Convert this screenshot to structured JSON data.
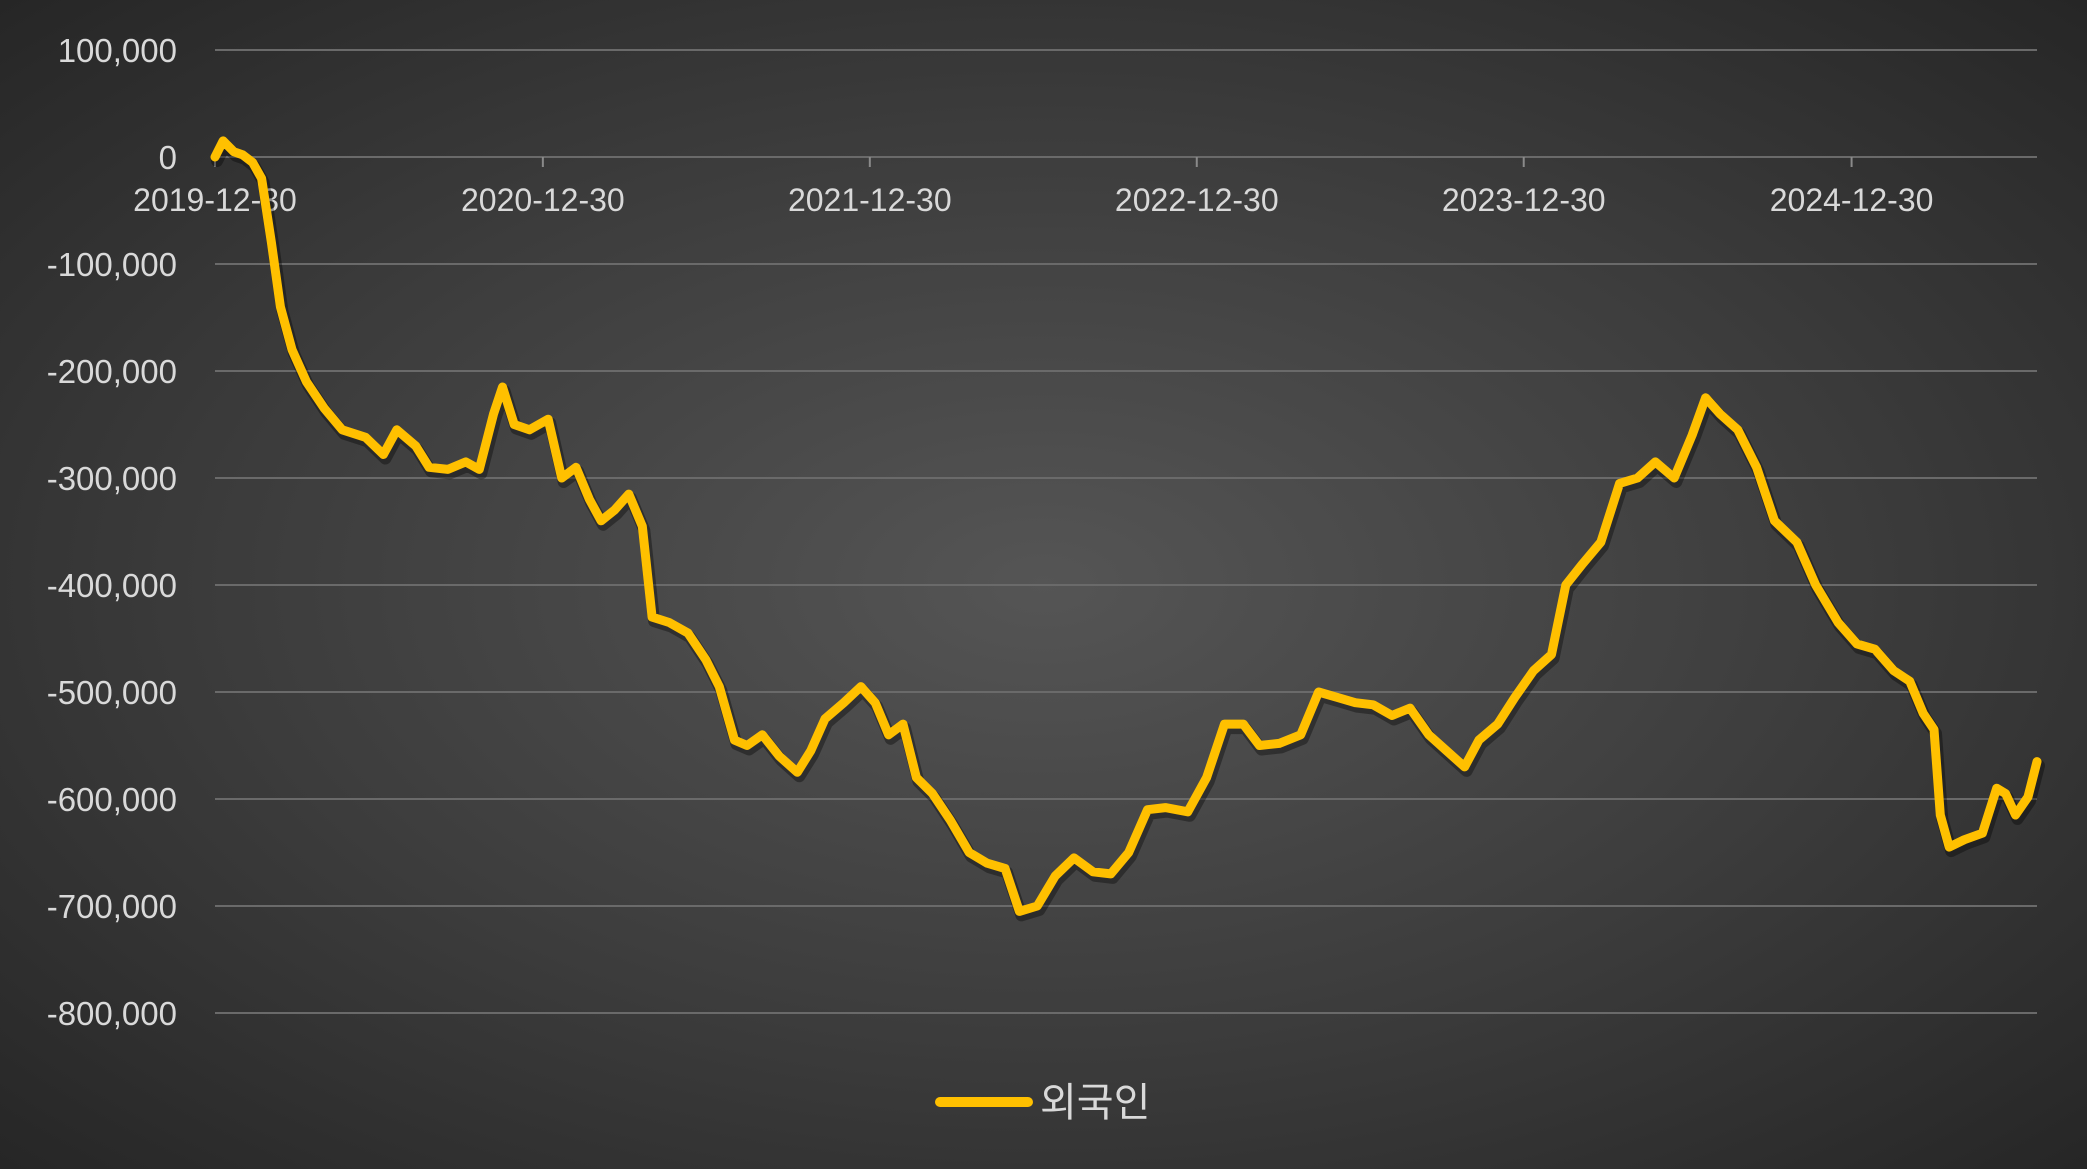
{
  "chart_data": {
    "type": "line",
    "title": "",
    "xlabel": "",
    "ylabel": "",
    "x_start": "2019-12-30",
    "x_end": "2025-07-25",
    "x_ticks": [
      "2019-12-30",
      "2020-12-30",
      "2021-12-30",
      "2022-12-30",
      "2023-12-30",
      "2024-12-30"
    ],
    "y_ticks": [
      "100,000",
      "0",
      "-100,000",
      "-200,000",
      "-300,000",
      "-400,000",
      "-500,000",
      "-600,000",
      "-700,000",
      "-800,000"
    ],
    "ylim": [
      -800000,
      100000
    ],
    "grid": true,
    "legend_position": "bottom",
    "series": [
      {
        "name": "외국인",
        "color": "#FFC000",
        "points": [
          [
            "2019-12-30",
            0
          ],
          [
            "2020-01-08",
            15000
          ],
          [
            "2020-01-20",
            5000
          ],
          [
            "2020-01-30",
            2000
          ],
          [
            "2020-02-10",
            -5000
          ],
          [
            "2020-02-20",
            -20000
          ],
          [
            "2020-03-02",
            -80000
          ],
          [
            "2020-03-12",
            -140000
          ],
          [
            "2020-03-25",
            -180000
          ],
          [
            "2020-04-10",
            -210000
          ],
          [
            "2020-04-30",
            -235000
          ],
          [
            "2020-05-20",
            -255000
          ],
          [
            "2020-06-15",
            -262000
          ],
          [
            "2020-07-05",
            -278000
          ],
          [
            "2020-07-20",
            -255000
          ],
          [
            "2020-08-10",
            -270000
          ],
          [
            "2020-08-25",
            -290000
          ],
          [
            "2020-09-15",
            -292000
          ],
          [
            "2020-10-05",
            -285000
          ],
          [
            "2020-10-20",
            -292000
          ],
          [
            "2020-11-05",
            -240000
          ],
          [
            "2020-11-15",
            -215000
          ],
          [
            "2020-11-28",
            -250000
          ],
          [
            "2020-12-15",
            -255000
          ],
          [
            "2021-01-05",
            -245000
          ],
          [
            "2021-01-20",
            -300000
          ],
          [
            "2021-02-05",
            -290000
          ],
          [
            "2021-02-20",
            -320000
          ],
          [
            "2021-03-05",
            -340000
          ],
          [
            "2021-03-20",
            -330000
          ],
          [
            "2021-04-05",
            -315000
          ],
          [
            "2021-04-20",
            -345000
          ],
          [
            "2021-05-01",
            -430000
          ],
          [
            "2021-05-20",
            -435000
          ],
          [
            "2021-06-10",
            -445000
          ],
          [
            "2021-06-30",
            -470000
          ],
          [
            "2021-07-15",
            -495000
          ],
          [
            "2021-08-01",
            -545000
          ],
          [
            "2021-08-15",
            -550000
          ],
          [
            "2021-09-01",
            -540000
          ],
          [
            "2021-09-20",
            -560000
          ],
          [
            "2021-10-10",
            -575000
          ],
          [
            "2021-10-25",
            -555000
          ],
          [
            "2021-11-10",
            -525000
          ],
          [
            "2021-12-01",
            -510000
          ],
          [
            "2021-12-20",
            -495000
          ],
          [
            "2022-01-05",
            -510000
          ],
          [
            "2022-01-20",
            -540000
          ],
          [
            "2022-02-05",
            -530000
          ],
          [
            "2022-02-20",
            -580000
          ],
          [
            "2022-03-10",
            -595000
          ],
          [
            "2022-03-30",
            -620000
          ],
          [
            "2022-04-20",
            -650000
          ],
          [
            "2022-05-10",
            -660000
          ],
          [
            "2022-05-30",
            -665000
          ],
          [
            "2022-06-15",
            -705000
          ],
          [
            "2022-07-05",
            -700000
          ],
          [
            "2022-07-25",
            -672000
          ],
          [
            "2022-08-15",
            -655000
          ],
          [
            "2022-09-05",
            -668000
          ],
          [
            "2022-09-25",
            -670000
          ],
          [
            "2022-10-15",
            -650000
          ],
          [
            "2022-11-05",
            -610000
          ],
          [
            "2022-11-25",
            -608000
          ],
          [
            "2022-12-20",
            -612000
          ],
          [
            "2023-01-10",
            -580000
          ],
          [
            "2023-01-30",
            -530000
          ],
          [
            "2023-02-20",
            -530000
          ],
          [
            "2023-03-10",
            -550000
          ],
          [
            "2023-04-01",
            -548000
          ],
          [
            "2023-04-25",
            -540000
          ],
          [
            "2023-05-15",
            -500000
          ],
          [
            "2023-06-05",
            -505000
          ],
          [
            "2023-06-25",
            -510000
          ],
          [
            "2023-07-15",
            -512000
          ],
          [
            "2023-08-05",
            -522000
          ],
          [
            "2023-08-25",
            -515000
          ],
          [
            "2023-09-15",
            -540000
          ],
          [
            "2023-10-05",
            -555000
          ],
          [
            "2023-10-25",
            -570000
          ],
          [
            "2023-11-10",
            -545000
          ],
          [
            "2023-12-01",
            -530000
          ],
          [
            "2023-12-20",
            -505000
          ],
          [
            "2024-01-10",
            -480000
          ],
          [
            "2024-01-30",
            -465000
          ],
          [
            "2024-02-15",
            -400000
          ],
          [
            "2024-03-05",
            -380000
          ],
          [
            "2024-03-25",
            -360000
          ],
          [
            "2024-04-15",
            -305000
          ],
          [
            "2024-05-05",
            -300000
          ],
          [
            "2024-05-25",
            -285000
          ],
          [
            "2024-06-15",
            -300000
          ],
          [
            "2024-07-05",
            -260000
          ],
          [
            "2024-07-20",
            -225000
          ],
          [
            "2024-08-05",
            -240000
          ],
          [
            "2024-08-25",
            -255000
          ],
          [
            "2024-09-15",
            -290000
          ],
          [
            "2024-10-05",
            -340000
          ],
          [
            "2024-10-30",
            -360000
          ],
          [
            "2024-11-20",
            -400000
          ],
          [
            "2024-12-15",
            -435000
          ],
          [
            "2025-01-05",
            -455000
          ],
          [
            "2025-01-25",
            -460000
          ],
          [
            "2025-02-15",
            -480000
          ],
          [
            "2025-03-05",
            -490000
          ],
          [
            "2025-03-20",
            -520000
          ],
          [
            "2025-04-01",
            -535000
          ],
          [
            "2025-04-08",
            -615000
          ],
          [
            "2025-04-18",
            -645000
          ],
          [
            "2025-05-05",
            -638000
          ],
          [
            "2025-05-25",
            -632000
          ],
          [
            "2025-06-10",
            -590000
          ],
          [
            "2025-06-20",
            -595000
          ],
          [
            "2025-07-01",
            -615000
          ],
          [
            "2025-07-15",
            -598000
          ],
          [
            "2025-07-25",
            -565000
          ]
        ]
      }
    ]
  }
}
